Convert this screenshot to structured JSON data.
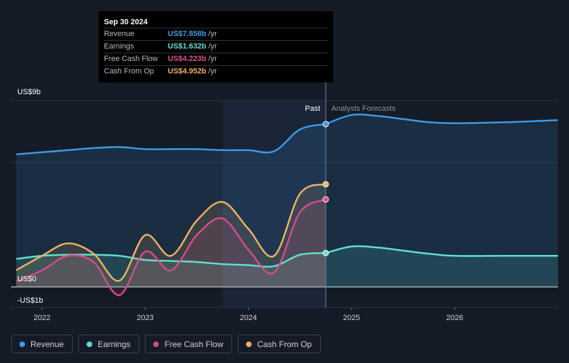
{
  "tooltip": {
    "date": "Sep 30 2024",
    "rows": [
      {
        "label": "Revenue",
        "value": "US$7.858b",
        "unit": "/yr",
        "color": "#3b9be8"
      },
      {
        "label": "Earnings",
        "value": "US$1.632b",
        "unit": "/yr",
        "color": "#5ee0cf"
      },
      {
        "label": "Free Cash Flow",
        "value": "US$4.223b",
        "unit": "/yr",
        "color": "#e0508f"
      },
      {
        "label": "Cash From Op",
        "value": "US$4.952b",
        "unit": "/yr",
        "color": "#f0b062"
      }
    ]
  },
  "legend": [
    {
      "label": "Revenue",
      "color": "#3b9be8"
    },
    {
      "label": "Earnings",
      "color": "#5ee0cf"
    },
    {
      "label": "Free Cash Flow",
      "color": "#d64c89"
    },
    {
      "label": "Cash From Op",
      "color": "#f0b062"
    }
  ],
  "chart_data": {
    "type": "line",
    "y_unit_labels": {
      "top": "US$9b",
      "zero": "US$0",
      "bottom": "-US$1b"
    },
    "ylim": [
      -1,
      9
    ],
    "xlim": [
      2021.7,
      2027.0
    ],
    "x_ticks": [
      {
        "label": "2022",
        "x": 2022.0
      },
      {
        "label": "2023",
        "x": 2023.0
      },
      {
        "label": "2024",
        "x": 2024.0
      },
      {
        "label": "2025",
        "x": 2025.0
      },
      {
        "label": "2026",
        "x": 2026.0
      }
    ],
    "past_label": "Past",
    "forecast_label": "Analysts Forecasts",
    "current_x": 2024.75,
    "highlight_start_x": 2023.75,
    "series": [
      {
        "name": "Revenue",
        "color": "#3b9be8",
        "past": [
          [
            2021.75,
            6.4
          ],
          [
            2022.0,
            6.5
          ],
          [
            2022.25,
            6.6
          ],
          [
            2022.5,
            6.7
          ],
          [
            2022.75,
            6.75
          ],
          [
            2023.0,
            6.65
          ],
          [
            2023.25,
            6.65
          ],
          [
            2023.5,
            6.65
          ],
          [
            2023.75,
            6.6
          ],
          [
            2024.0,
            6.6
          ],
          [
            2024.25,
            6.55
          ],
          [
            2024.5,
            7.6
          ],
          [
            2024.75,
            7.858
          ]
        ],
        "forecast": [
          [
            2024.75,
            7.858
          ],
          [
            2025.0,
            8.3
          ],
          [
            2025.25,
            8.25
          ],
          [
            2025.5,
            8.1
          ],
          [
            2025.75,
            7.95
          ],
          [
            2026.0,
            7.9
          ],
          [
            2026.5,
            7.95
          ],
          [
            2027.0,
            8.05
          ]
        ]
      },
      {
        "name": "Earnings",
        "color": "#5ee0cf",
        "past": [
          [
            2021.75,
            1.35
          ],
          [
            2022.0,
            1.5
          ],
          [
            2022.25,
            1.55
          ],
          [
            2022.5,
            1.55
          ],
          [
            2022.75,
            1.5
          ],
          [
            2023.0,
            1.3
          ],
          [
            2023.25,
            1.25
          ],
          [
            2023.5,
            1.2
          ],
          [
            2023.75,
            1.1
          ],
          [
            2024.0,
            1.05
          ],
          [
            2024.25,
            1.0
          ],
          [
            2024.5,
            1.55
          ],
          [
            2024.75,
            1.632
          ]
        ],
        "forecast": [
          [
            2024.75,
            1.632
          ],
          [
            2025.0,
            1.95
          ],
          [
            2025.25,
            1.9
          ],
          [
            2025.5,
            1.75
          ],
          [
            2025.75,
            1.6
          ],
          [
            2026.0,
            1.5
          ],
          [
            2026.5,
            1.5
          ],
          [
            2027.0,
            1.5
          ]
        ]
      },
      {
        "name": "Free Cash Flow",
        "color": "#d64c89",
        "past": [
          [
            2021.75,
            0.25
          ],
          [
            2022.0,
            0.8
          ],
          [
            2022.25,
            1.5
          ],
          [
            2022.5,
            1.2
          ],
          [
            2022.75,
            -0.4
          ],
          [
            2023.0,
            1.7
          ],
          [
            2023.25,
            0.8
          ],
          [
            2023.5,
            2.5
          ],
          [
            2023.75,
            3.3
          ],
          [
            2024.0,
            1.8
          ],
          [
            2024.25,
            0.7
          ],
          [
            2024.5,
            3.6
          ],
          [
            2024.75,
            4.223
          ]
        ],
        "forecast": []
      },
      {
        "name": "Cash From Op",
        "color": "#f0b062",
        "past": [
          [
            2021.75,
            0.8
          ],
          [
            2022.0,
            1.5
          ],
          [
            2022.25,
            2.1
          ],
          [
            2022.5,
            1.6
          ],
          [
            2022.75,
            0.3
          ],
          [
            2023.0,
            2.5
          ],
          [
            2023.25,
            1.5
          ],
          [
            2023.5,
            3.2
          ],
          [
            2023.75,
            4.1
          ],
          [
            2024.0,
            2.8
          ],
          [
            2024.25,
            1.5
          ],
          [
            2024.5,
            4.5
          ],
          [
            2024.75,
            4.952
          ]
        ],
        "forecast": []
      }
    ]
  }
}
